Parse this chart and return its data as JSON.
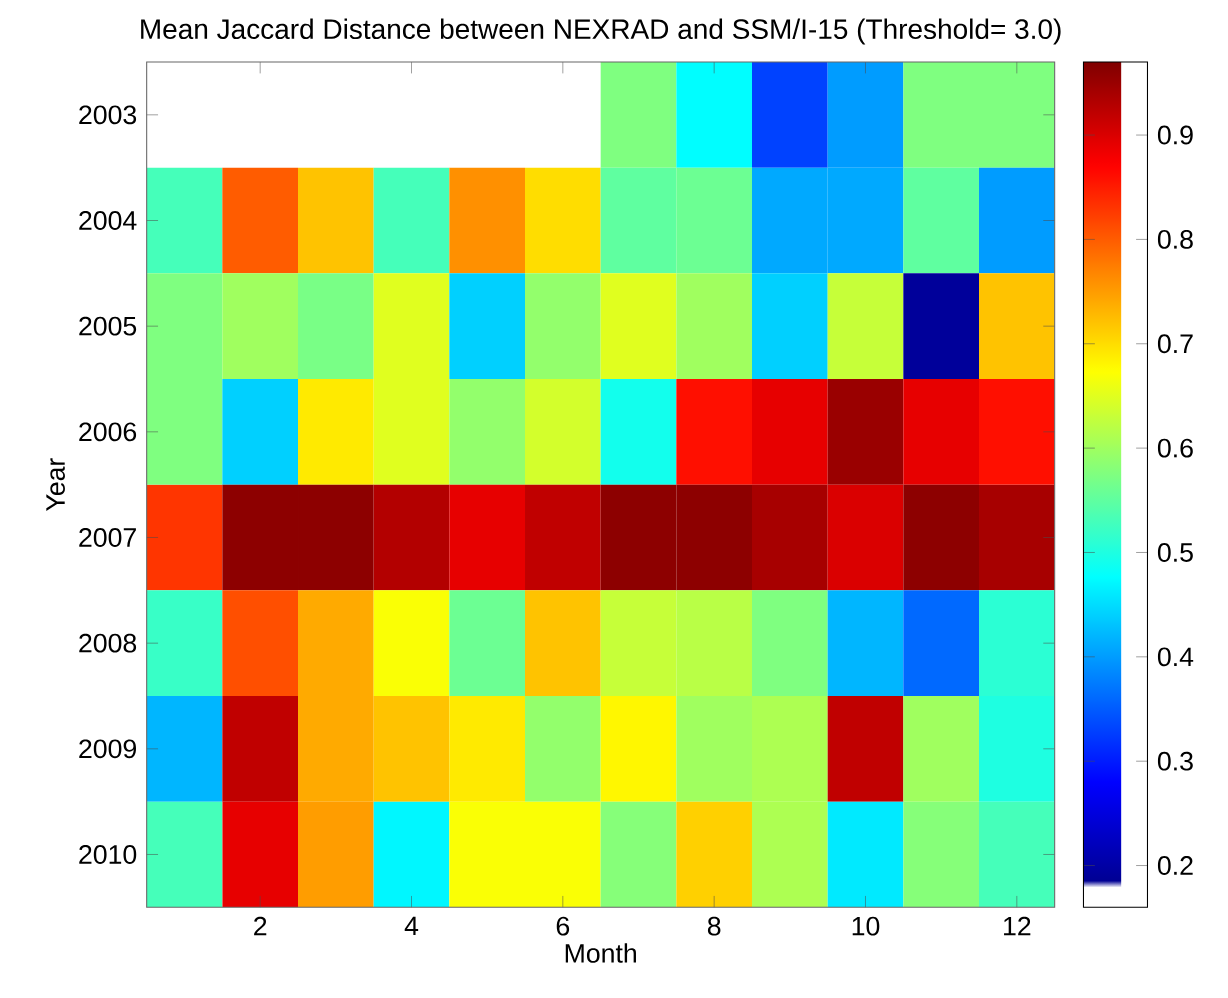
{
  "chart_data": {
    "type": "heatmap",
    "title": "Mean Jaccard Distance between NEXRAD and SSM/I-15 (Threshold= 3.0)",
    "xlabel": "Month",
    "ylabel": "Year",
    "categories": [
      null,
      "2",
      null,
      "4",
      null,
      "6",
      null,
      "8",
      null,
      "10",
      null,
      "12"
    ],
    "y_categories": [
      "2003",
      "2004",
      "2005",
      "2006",
      "2007",
      "2008",
      "2009",
      "2010"
    ],
    "cells": [
      [
        null,
        null,
        null,
        null,
        null,
        null,
        0.575,
        0.476,
        0.33,
        0.4,
        0.575,
        0.575
      ],
      [
        0.53,
        0.8,
        0.72,
        0.53,
        0.76,
        0.7,
        0.55,
        0.56,
        0.41,
        0.41,
        0.55,
        0.4
      ],
      [
        0.575,
        0.6,
        0.57,
        0.65,
        0.44,
        0.59,
        0.65,
        0.6,
        0.44,
        0.63,
        0.19,
        0.72
      ],
      [
        0.575,
        0.44,
        0.69,
        0.65,
        0.59,
        0.64,
        0.49,
        0.86,
        0.89,
        0.95,
        0.89,
        0.86
      ],
      [
        0.83,
        0.96,
        0.96,
        0.93,
        0.89,
        0.92,
        0.96,
        0.96,
        0.94,
        0.9,
        0.96,
        0.94
      ],
      [
        0.52,
        0.81,
        0.74,
        0.67,
        0.56,
        0.72,
        0.63,
        0.62,
        0.575,
        0.42,
        0.36,
        0.51
      ],
      [
        0.42,
        0.92,
        0.74,
        0.72,
        0.69,
        0.59,
        0.68,
        0.6,
        0.61,
        0.92,
        0.6,
        0.5
      ],
      [
        0.53,
        0.89,
        0.75,
        0.47,
        0.67,
        0.67,
        0.58,
        0.71,
        0.61,
        0.46,
        0.58,
        0.53
      ]
    ],
    "clim": [
      0.16,
      0.97
    ],
    "cticks": [
      0.2,
      0.3,
      0.4,
      0.5,
      0.6,
      0.7,
      0.8,
      0.9
    ]
  }
}
